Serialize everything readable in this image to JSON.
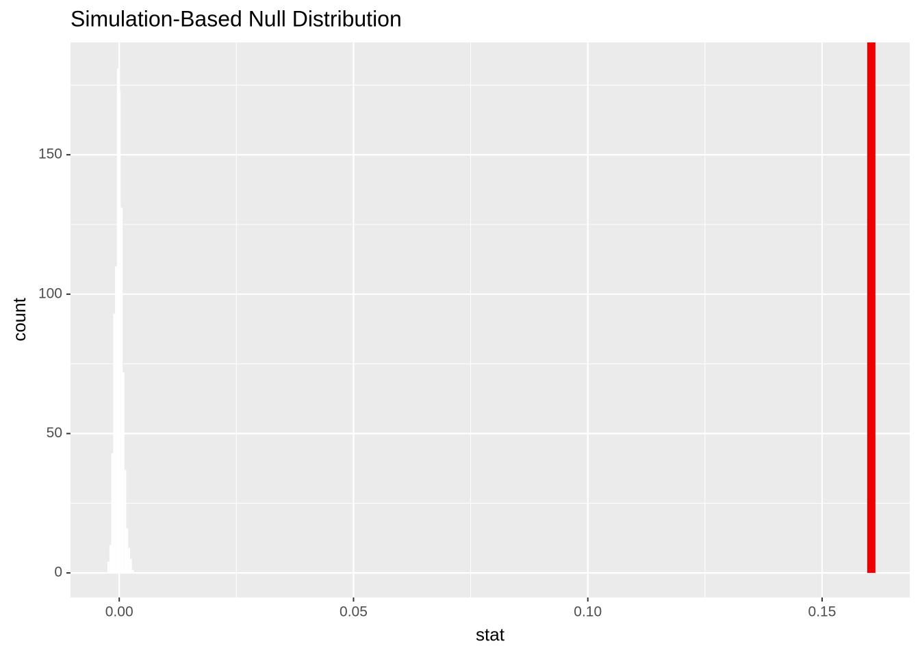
{
  "chart_data": {
    "type": "histogram",
    "title": "Simulation-Based Null Distribution",
    "x_label": "stat",
    "y_label": "count",
    "bins": [
      -0.0025,
      -0.0021,
      -0.0017,
      -0.0013,
      -0.0009,
      -0.0005,
      -0.0001,
      0.0003,
      0.0007,
      0.0011,
      0.0015,
      0.0019,
      0.0023,
      0.0027,
      0.0031
    ],
    "values": [
      4,
      10,
      43,
      93,
      110,
      181,
      173,
      131,
      72,
      37,
      16,
      9,
      5,
      1
    ],
    "color": "#ffffff",
    "observed_stat": 0.1605,
    "observed_color": "#ee0000",
    "xlim": [
      -0.0104,
      0.1687
    ],
    "ylim": [
      -8.8,
      190.3
    ],
    "xticks": [
      {
        "value": 0,
        "label": "0.00"
      },
      {
        "value": 0.05,
        "label": "0.05"
      },
      {
        "value": 0.1,
        "label": "0.10"
      },
      {
        "value": 0.15,
        "label": "0.15"
      }
    ],
    "xminor": [
      0.025,
      0.075,
      0.125
    ],
    "yticks": [
      0,
      50,
      100,
      150
    ],
    "yminor": [
      25,
      75,
      125,
      175
    ],
    "grid": true
  }
}
